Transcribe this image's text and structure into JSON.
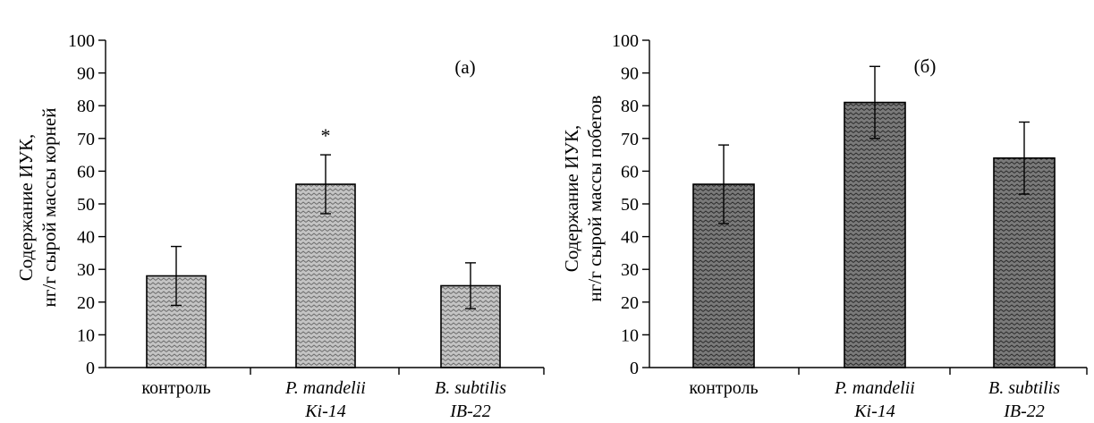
{
  "chart_data": [
    {
      "type": "bar",
      "panel_label": "(а)",
      "ylabel_lines": [
        "Содержание ИУК,",
        "нг/г сырой массы корней"
      ],
      "xlabel": "",
      "ylim": [
        0,
        100
      ],
      "yticks": [
        0,
        10,
        20,
        30,
        40,
        50,
        60,
        70,
        80,
        90,
        100
      ],
      "grid": false,
      "categories": [
        {
          "line1": "контроль",
          "line2": "",
          "italic": false
        },
        {
          "line1": "P. mandelii",
          "line2": "Ki-14",
          "italic": true
        },
        {
          "line1": "B. subtilis",
          "line2": "IB-22",
          "italic": true
        }
      ],
      "values": [
        28,
        56,
        25
      ],
      "errors": [
        9,
        9,
        7
      ],
      "annotations": [
        "",
        "*",
        ""
      ],
      "bar_color": "#a9a9a9"
    },
    {
      "type": "bar",
      "panel_label": "(б)",
      "ylabel_lines": [
        "Содержание ИУК,",
        "нг/г сырой массы побегов"
      ],
      "xlabel": "",
      "ylim": [
        0,
        100
      ],
      "yticks": [
        0,
        10,
        20,
        30,
        40,
        50,
        60,
        70,
        80,
        90,
        100
      ],
      "grid": false,
      "categories": [
        {
          "line1": "контроль",
          "line2": "",
          "italic": false
        },
        {
          "line1": "P. mandelii",
          "line2": "Ki-14",
          "italic": true
        },
        {
          "line1": "B. subtilis",
          "line2": "IB-22",
          "italic": true
        }
      ],
      "values": [
        56,
        81,
        64
      ],
      "errors": [
        12,
        11,
        11
      ],
      "annotations": [
        "",
        "",
        ""
      ],
      "bar_color": "#5e5e5e"
    }
  ]
}
